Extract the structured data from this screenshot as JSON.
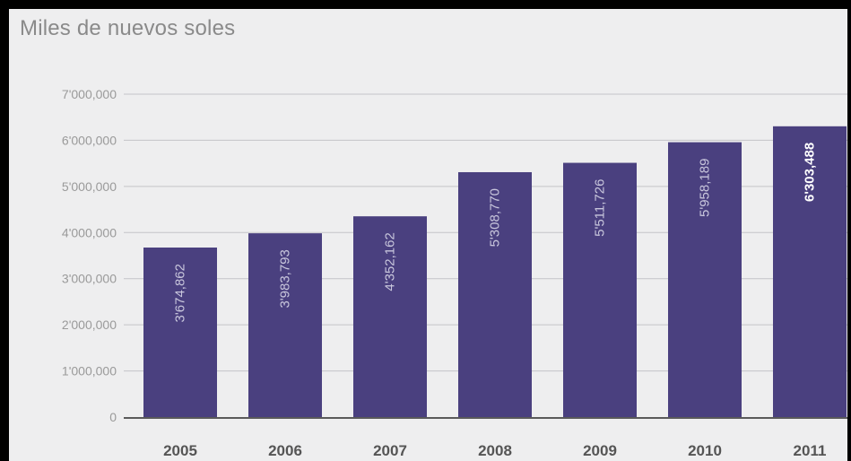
{
  "chart_data": {
    "type": "bar",
    "title": "Miles de nuevos soles",
    "xlabel": "",
    "ylabel": "",
    "categories": [
      "2005",
      "2006",
      "2007",
      "2008",
      "2009",
      "2010",
      "2011"
    ],
    "values": [
      3674862,
      3983793,
      4352162,
      5308770,
      5511726,
      5958189,
      6303488
    ],
    "value_labels": [
      "3'674,862",
      "3'983,793",
      "4'352,162",
      "5'308,770",
      "5'511,726",
      "5'958,189",
      "6'303,488"
    ],
    "ylim": [
      0,
      7000000
    ],
    "yticks": [
      0,
      1000000,
      2000000,
      3000000,
      4000000,
      5000000,
      6000000,
      7000000
    ],
    "ytick_labels": [
      "0",
      "1'000,000",
      "2'000,000",
      "3'000,000",
      "4'000,000",
      "5'000,000",
      "6'000,000",
      "7'000,000"
    ],
    "grid": true,
    "legend": false,
    "colors": {
      "bar": "#4a407f",
      "grid": "#c4c4c8",
      "axis": "#5a5a5a",
      "label": "#c8c6dc",
      "label_highlight": "#ffffff"
    }
  }
}
